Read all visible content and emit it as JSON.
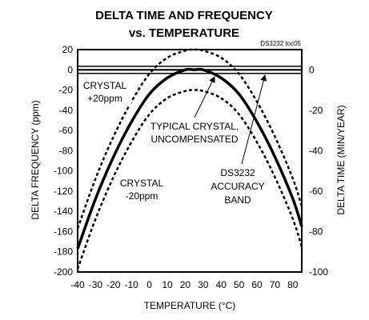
{
  "chart_data": {
    "type": "line",
    "title_line1": "DELTA TIME AND FREQUENCY",
    "title_line2": "vs. TEMPERATURE",
    "ref_code": "DS3232 toc05",
    "xlabel": "TEMPERATURE (°C)",
    "ylabel": "DELTA FREQUENCY (ppm)",
    "y2label": "DELTA TIME (MIN/YEAR)",
    "xlim": [
      -40,
      85
    ],
    "ylim": [
      -200,
      20
    ],
    "y2lim": [
      -100,
      10
    ],
    "xticks": [
      -40,
      -30,
      -20,
      -10,
      0,
      10,
      20,
      30,
      40,
      50,
      60,
      70,
      80
    ],
    "yticks": [
      20,
      0,
      -20,
      -40,
      -60,
      -80,
      -100,
      -120,
      -140,
      -160,
      -180,
      -200
    ],
    "y2ticks": [
      0,
      -20,
      -40,
      -60,
      -80,
      -100
    ],
    "grid": false,
    "series": [
      {
        "style": "solid-thick",
        "x": [
          -40,
          -30,
          -20,
          -10,
          0,
          10,
          20,
          25,
          30,
          40,
          50,
          60,
          70,
          80,
          85
        ],
        "y": [
          -177,
          -127.5,
          -86,
          -51.5,
          -24,
          -8,
          0,
          0,
          0,
          -8,
          -24,
          -51.5,
          -86,
          -127.5,
          -155
        ]
      },
      {
        "style": "dashed-upper",
        "x": [
          -40,
          -30,
          -20,
          -10,
          0,
          10,
          20,
          25,
          30,
          40,
          50,
          60,
          70,
          80,
          85
        ],
        "y": [
          -157,
          -107.5,
          -66,
          -31.5,
          -4,
          12,
          19,
          20,
          19,
          12,
          -4,
          -31.5,
          -66,
          -107.5,
          -135
        ]
      },
      {
        "style": "dashed-lower",
        "x": [
          -40,
          -30,
          -20,
          -10,
          0,
          10,
          20,
          25,
          30,
          40,
          50,
          60,
          70,
          80,
          85
        ],
        "y": [
          -197,
          -147.5,
          -106,
          -71.5,
          -44,
          -28,
          -21,
          -20,
          -21,
          -28,
          -44,
          -71.5,
          -106,
          -147.5,
          -175
        ]
      }
    ],
    "accuracy_band": {
      "inner": [
        -40,
        -0.25,
        85,
        0.25
      ],
      "outer": [
        -40,
        -3.5,
        85,
        3.5
      ]
    },
    "annotations": [
      {
        "text_lines": [
          "CRYSTAL",
          "+20ppm"
        ]
      },
      {
        "text_lines": [
          "TYPICAL CRYSTAL,",
          "UNCOMPENSATED"
        ]
      },
      {
        "text_lines": [
          "CRYSTAL",
          "-20ppm"
        ]
      },
      {
        "text_lines": [
          "DS3232",
          "ACCURACY",
          "BAND"
        ]
      }
    ]
  }
}
